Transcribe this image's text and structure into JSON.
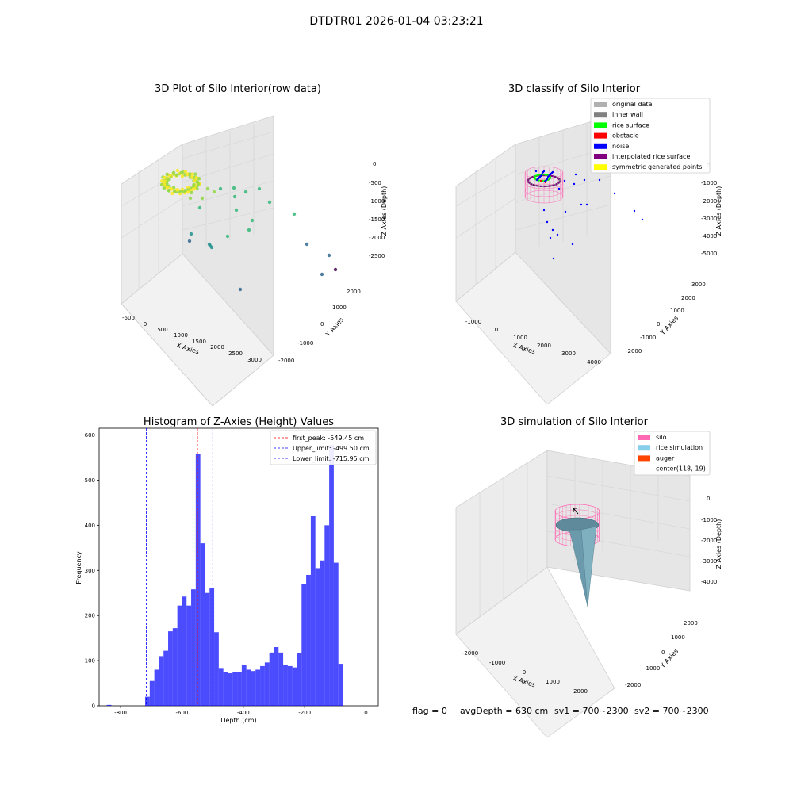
{
  "figure": {
    "suptitle": "DTDTR01 2026-01-04 03:23:21",
    "footer": {
      "flag": "flag = 0",
      "avg": "avgDepth = 630 cm",
      "sv1": "sv1 = 700~2300",
      "sv2": "sv2 = 700~2300"
    }
  },
  "chart_data": [
    {
      "type": "scatter",
      "title": "3D Plot of Silo Interior(row data)",
      "xlabel": "X Axies",
      "ylabel": "Y Axies",
      "zlabel": "Z Axies (Depth)",
      "xticks": [
        "-500",
        "0",
        "500",
        "1000",
        "1500",
        "2000",
        "2500",
        "3000"
      ],
      "yticks": [
        "-2000",
        "-1000",
        "0",
        "1000",
        "2000"
      ],
      "zticks": [
        "0",
        "-500",
        "-1000",
        "-1500",
        "-2000",
        "-2500"
      ],
      "xlim": [
        -700,
        3200
      ],
      "ylim": [
        -2200,
        2300
      ],
      "zlim": [
        -2900,
        100
      ],
      "colormap": [
        "#440154",
        "#31688e",
        "#21918c",
        "#35b779",
        "#90d743",
        "#fde725"
      ]
    },
    {
      "type": "scatter",
      "title": "3D classify of Silo Interior",
      "xlabel": "X Axies",
      "ylabel": "Y Axies",
      "zlabel": "Z Axies (Depth)",
      "xticks": [
        "-1000",
        "0",
        "1000",
        "2000",
        "3000",
        "4000"
      ],
      "yticks": [
        "-2000",
        "-1000",
        "0",
        "1000",
        "2000",
        "3000"
      ],
      "zticks": [
        "0",
        "-1000",
        "-2000",
        "-3000",
        "-4000",
        "-5000"
      ],
      "legend": [
        {
          "label": "original data",
          "color": "#b0b0b0"
        },
        {
          "label": "inner wall",
          "color": "#808080"
        },
        {
          "label": "rice surface",
          "color": "#00ff00"
        },
        {
          "label": "obstacle",
          "color": "#ff0000"
        },
        {
          "label": "noise",
          "color": "#0000ff"
        },
        {
          "label": "interpolated rice surface",
          "color": "#800080"
        },
        {
          "label": "symmetric generated points",
          "color": "#ffff00"
        }
      ],
      "legend_position": "top-right"
    },
    {
      "type": "bar",
      "title": "Histogram of Z-Axies (Height) Values",
      "xlabel": "Depth (cm)",
      "ylabel": "Frequency",
      "xlim": [
        -870,
        40
      ],
      "ylim": [
        0,
        615
      ],
      "xticks": [
        -800,
        -600,
        -400,
        -200,
        0
      ],
      "yticks": [
        0,
        100,
        200,
        300,
        400,
        500,
        600
      ],
      "bin_start": -720,
      "bin_width": 15,
      "values": [
        20,
        55,
        80,
        110,
        122,
        165,
        172,
        222,
        242,
        222,
        258,
        558,
        360,
        250,
        260,
        163,
        82,
        75,
        72,
        75,
        75,
        90,
        80,
        77,
        80,
        88,
        96,
        118,
        130,
        118,
        90,
        88,
        85,
        116,
        270,
        290,
        420,
        305,
        322,
        400,
        578,
        317,
        93
      ],
      "outlier_bins": [
        {
          "x0": -845,
          "x1": -830,
          "value": 2
        }
      ],
      "color": "#0000ff",
      "lines": [
        {
          "label": "first_peak: -549.45 cm",
          "x": -549.45,
          "color": "#ff0000"
        },
        {
          "label": "Upper_limit: -499.50 cm",
          "x": -499.5,
          "color": "#0000ff"
        },
        {
          "label": "Lower_limit: -715.95 cm",
          "x": -715.95,
          "color": "#0000ff"
        }
      ],
      "legend_position": "top-right"
    },
    {
      "type": "surface",
      "title": "3D simulation of Silo Interior",
      "xlabel": "X Axies",
      "ylabel": "Y Axies",
      "zlabel": "Z Axies (Depth)",
      "xticks": [
        "-2000",
        "-1000",
        "0",
        "1000",
        "2000"
      ],
      "yticks": [
        "-2000",
        "-1000",
        "0",
        "1000",
        "2000"
      ],
      "zticks": [
        "0",
        "-1000",
        "-2000",
        "-3000",
        "-4000"
      ],
      "legend": [
        {
          "label": "silo",
          "color": "#ff69b4"
        },
        {
          "label": "rice simulation",
          "color": "#87ceeb"
        },
        {
          "label": "auger",
          "color": "#ff4500"
        },
        {
          "label": "center(118,-19)",
          "color": ""
        }
      ],
      "legend_position": "top-right"
    }
  ]
}
